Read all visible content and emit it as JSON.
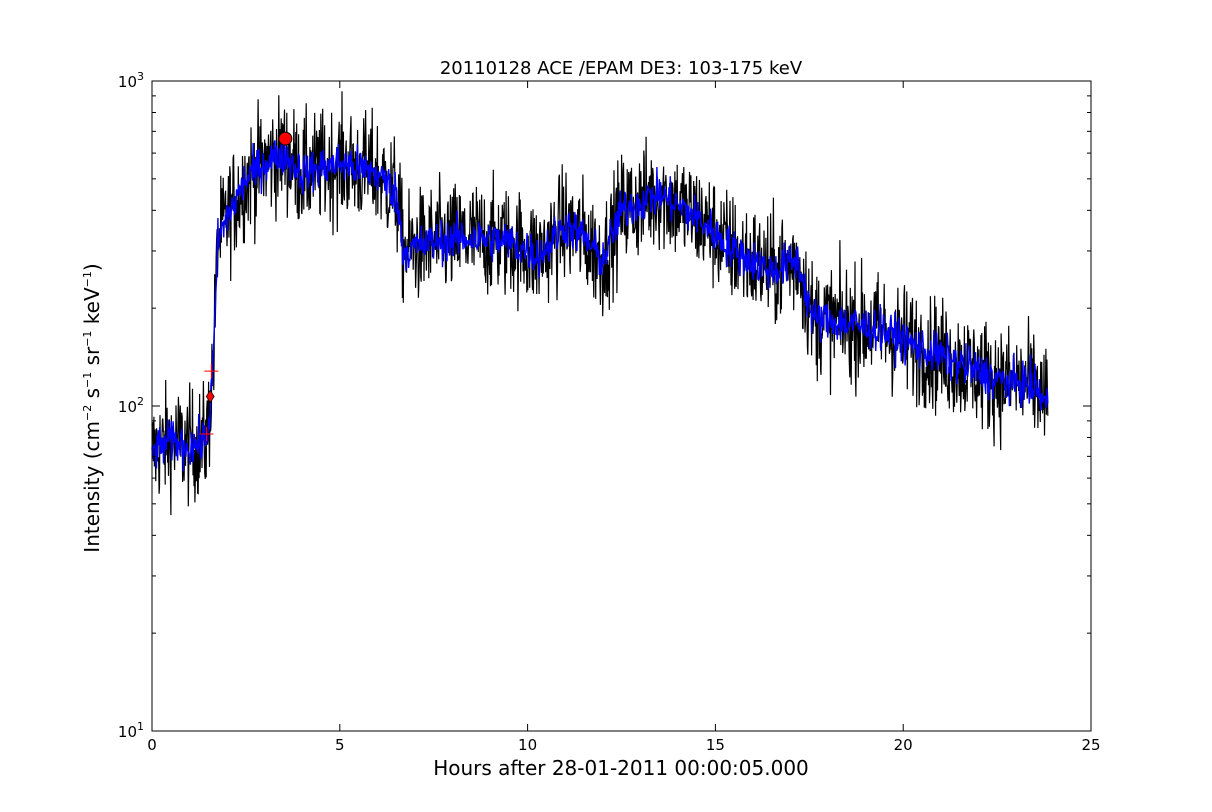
{
  "chart_data": {
    "type": "line",
    "title": "20110128 ACE /EPAM DE3: 103-175 keV",
    "xlabel": "Hours after 28-01-2011 00:00:05.000",
    "ylabel": {
      "main": "Intensity (cm",
      "e1": "−2",
      "p2": " s",
      "e2": "−1",
      "p3": " sr",
      "e3": "−1",
      "p4": " keV",
      "e4": "−1",
      "p5": ")"
    },
    "xlim": [
      0,
      25
    ],
    "ylim": [
      10,
      1000
    ],
    "yscale": "log",
    "grid": false,
    "x_ticks": [
      {
        "value": 0,
        "label": "0"
      },
      {
        "value": 5,
        "label": "5"
      },
      {
        "value": 10,
        "label": "10"
      },
      {
        "value": 15,
        "label": "15"
      },
      {
        "value": 20,
        "label": "20"
      },
      {
        "value": 25,
        "label": "25"
      }
    ],
    "y_ticks": [
      {
        "value": 10,
        "base": "10",
        "exp": "1"
      },
      {
        "value": 100,
        "base": "10",
        "exp": "2"
      },
      {
        "value": 1000,
        "base": "10",
        "exp": "3"
      }
    ],
    "series_profile": {
      "x": [
        0.0,
        0.5,
        1.0,
        1.45,
        1.55,
        1.65,
        1.75,
        2.0,
        2.5,
        3.0,
        3.5,
        4.0,
        5.0,
        6.0,
        6.5,
        6.7,
        7.5,
        8.5,
        9.5,
        10.3,
        11.0,
        11.5,
        12.0,
        12.5,
        13.5,
        14.5,
        15.5,
        16.5,
        17.2,
        17.6,
        18.5,
        19.5,
        20.5,
        21.5,
        22.5,
        23.5,
        23.85
      ],
      "y": [
        72,
        78,
        75,
        78,
        100,
        150,
        320,
        380,
        500,
        560,
        600,
        520,
        560,
        520,
        450,
        300,
        320,
        330,
        320,
        290,
        360,
        330,
        280,
        400,
        450,
        380,
        300,
        260,
        280,
        185,
        180,
        170,
        150,
        135,
        120,
        115,
        100
      ]
    },
    "series": [
      {
        "name": "",
        "color": "#000000",
        "noise": 0.2
      },
      {
        "name": "",
        "color": "#0000ff",
        "noise": 0.075
      }
    ],
    "markers": [
      {
        "shape": "circle",
        "x": 3.55,
        "y": 665,
        "color": "#ff0000"
      },
      {
        "shape": "diamond",
        "x": 1.55,
        "y": 107,
        "color": "#ff0000"
      },
      {
        "shape": "plus",
        "x": 1.58,
        "y": 128,
        "color": "#ff0000"
      },
      {
        "shape": "plus",
        "x": 1.45,
        "y": 82,
        "color": "#ff0000"
      }
    ]
  }
}
